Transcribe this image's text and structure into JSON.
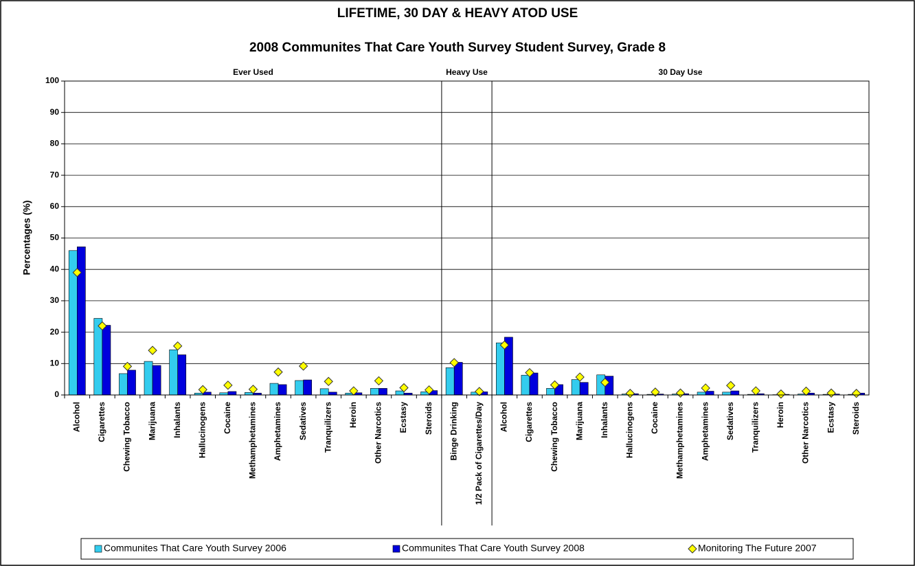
{
  "chart_data": {
    "type": "bar",
    "title": "LIFETIME, 30 DAY & HEAVY ATOD USE",
    "subtitle": "2008 Communites That Care Youth Survey Student Survey, Grade 8",
    "y_label": "Percentages (%)",
    "groups": [
      {
        "name": "Ever Used",
        "size": 15
      },
      {
        "name": "Heavy Use",
        "size": 2
      },
      {
        "name": "30 Day Use",
        "size": 15
      }
    ],
    "categories": [
      "Alcohol",
      "Cigarettes",
      "Chewing Tobacco",
      "Marijuana",
      "Inhalants",
      "Hallucinogens",
      "Cocaine",
      "Methamphetamines",
      "Amphetamines",
      "Sedatives",
      "Tranquilizers",
      "Heroin",
      "Other Narcotics",
      "Ecstasy",
      "Steroids",
      "Binge Drinking",
      "1/2 Pack of Cigarettes/Day",
      "Alcohol",
      "Cigarettes",
      "Chewing Tobacco",
      "Marijuana",
      "Inhalants",
      "Hallucinogens",
      "Cocaine",
      "Methamphetamines",
      "Amphetamines",
      "Sedatives",
      "Tranquilizers",
      "Heroin",
      "Other Narcotics",
      "Ecstasy",
      "Steroids"
    ],
    "series": [
      {
        "name": "Communites That Care Youth Survey 2006",
        "color": "#33ccee",
        "marker": "bar",
        "values": [
          46,
          24.4,
          6.8,
          10.7,
          14.4,
          0.6,
          0.7,
          0.8,
          3.7,
          4.6,
          2.0,
          0.6,
          2.1,
          1.3,
          1.0,
          8.7,
          0.9,
          16.6,
          6.3,
          2.1,
          4.9,
          6.4,
          0.3,
          0.2,
          0.3,
          0.9,
          0.9,
          0.2,
          0.1,
          0.3,
          0.2,
          0.2
        ]
      },
      {
        "name": "Communites That Care Youth Survey 2008",
        "color": "#0000dd",
        "marker": "bar",
        "values": [
          47.2,
          22.2,
          7.9,
          9.4,
          12.8,
          0.9,
          1.1,
          0.6,
          3.3,
          4.8,
          0.9,
          0.7,
          2.1,
          0.6,
          1.4,
          10.4,
          1.0,
          18.4,
          7.0,
          3.3,
          4.0,
          6.0,
          0.4,
          0.3,
          0.4,
          1.2,
          1.3,
          0.4,
          0.2,
          0.6,
          0.3,
          0.6
        ]
      },
      {
        "name": "Monitoring The Future 2007",
        "color": "#ffff00",
        "marker": "diamond",
        "values": [
          39,
          22,
          9.1,
          14.2,
          15.6,
          1.7,
          3.1,
          1.8,
          7.3,
          9.2,
          4.3,
          1.3,
          4.5,
          2.3,
          1.6,
          10.3,
          1.1,
          15.9,
          7.1,
          3.2,
          5.7,
          4.0,
          0.5,
          0.9,
          0.6,
          2.2,
          3.0,
          1.3,
          0.3,
          1.2,
          0.6,
          0.5
        ]
      }
    ],
    "ylim": [
      0,
      100
    ],
    "yticks": [
      0,
      10,
      20,
      30,
      40,
      50,
      60,
      70,
      80,
      90,
      100
    ],
    "grid": true,
    "legend": "bottom"
  }
}
